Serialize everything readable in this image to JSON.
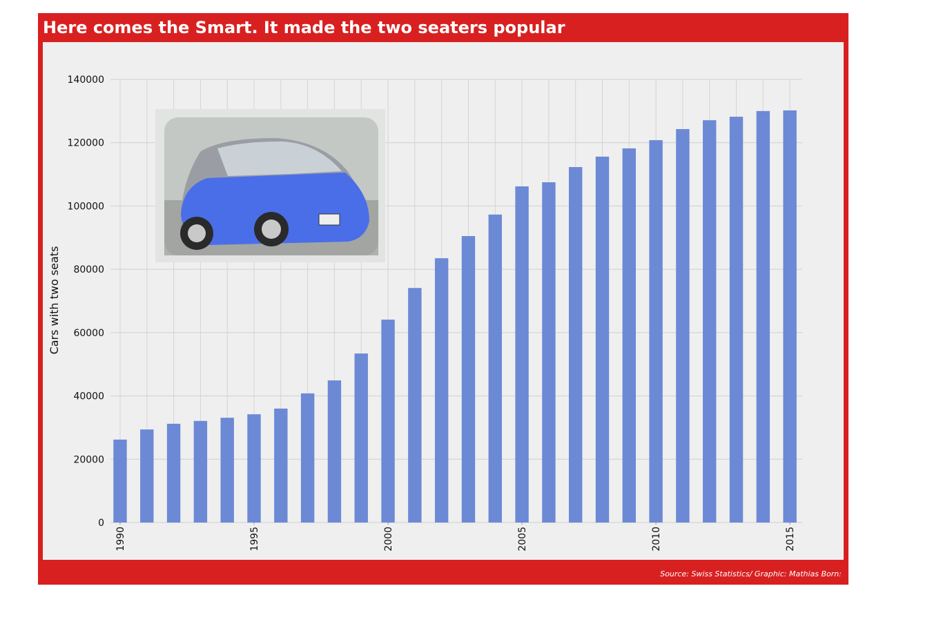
{
  "chart_data": {
    "type": "bar",
    "title": "Here comes the Smart. It made the two seaters popular",
    "source": "Source: Swiss Statistics/ Graphic: Mathias Born:",
    "y_label": "Cars with two seats",
    "x": [
      1990,
      1991,
      1992,
      1993,
      1994,
      1995,
      1996,
      1997,
      1998,
      1999,
      2000,
      2001,
      2002,
      2003,
      2004,
      2005,
      2006,
      2007,
      2008,
      2009,
      2010,
      2011,
      2012,
      2013,
      2014,
      2015
    ],
    "values": [
      26200,
      29400,
      31200,
      32100,
      33100,
      34200,
      36000,
      40800,
      44900,
      53400,
      64100,
      74100,
      83500,
      90500,
      97300,
      106200,
      107500,
      112300,
      115600,
      118200,
      120800,
      124300,
      127100,
      128200,
      130000,
      130200
    ],
    "color": "#6c89d6",
    "xlim": [
      1989.64,
      2015.46
    ],
    "xticks": [
      1990,
      1995,
      2000,
      2005,
      2010,
      2015
    ],
    "ylim": [
      0,
      140000
    ],
    "yticks": [
      0,
      20000,
      40000,
      60000,
      80000,
      100000,
      120000,
      140000
    ],
    "grid": true
  }
}
